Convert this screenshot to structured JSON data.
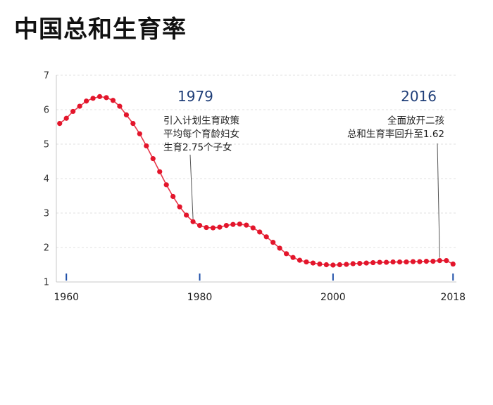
{
  "page": {
    "title": "中国总和生育率"
  },
  "chart_data": {
    "type": "line",
    "title": "中国总和生育率",
    "xlabel": "",
    "ylabel": "",
    "xlim": [
      1958.5,
      2018.5
    ],
    "ylim": [
      1,
      7
    ],
    "yticks": [
      1,
      2,
      3,
      4,
      5,
      6,
      7
    ],
    "xticks": [
      1960,
      1980,
      2000,
      2018
    ],
    "grid": true,
    "series": [
      {
        "color": "#e3152b",
        "x": [
          1959,
          1960,
          1961,
          1962,
          1963,
          1964,
          1965,
          1966,
          1967,
          1968,
          1969,
          1970,
          1971,
          1972,
          1973,
          1974,
          1975,
          1976,
          1977,
          1978,
          1979,
          1980,
          1981,
          1982,
          1983,
          1984,
          1985,
          1986,
          1987,
          1988,
          1989,
          1990,
          1991,
          1992,
          1993,
          1994,
          1995,
          1996,
          1997,
          1998,
          1999,
          2000,
          2001,
          2002,
          2003,
          2004,
          2005,
          2006,
          2007,
          2008,
          2009,
          2010,
          2011,
          2012,
          2013,
          2014,
          2015,
          2016,
          2017,
          2018
        ],
        "y": [
          5.6,
          5.75,
          5.95,
          6.1,
          6.25,
          6.33,
          6.38,
          6.35,
          6.27,
          6.1,
          5.85,
          5.6,
          5.3,
          4.95,
          4.58,
          4.2,
          3.82,
          3.48,
          3.18,
          2.94,
          2.75,
          2.64,
          2.58,
          2.57,
          2.59,
          2.64,
          2.67,
          2.68,
          2.65,
          2.57,
          2.45,
          2.31,
          2.15,
          1.98,
          1.82,
          1.71,
          1.63,
          1.58,
          1.55,
          1.52,
          1.5,
          1.49,
          1.5,
          1.51,
          1.53,
          1.54,
          1.55,
          1.56,
          1.57,
          1.57,
          1.58,
          1.58,
          1.58,
          1.59,
          1.59,
          1.6,
          1.6,
          1.62,
          1.62,
          1.52
        ]
      }
    ],
    "annotations": [
      {
        "year_label": "1979",
        "lines": [
          "引入计划生育政策",
          "平均每个育龄妇女",
          "生育2.75个子女"
        ],
        "x": 1979,
        "y": 2.75
      },
      {
        "year_label": "2016",
        "lines": [
          "全面放开二孩",
          "总和生育率回升至1.62"
        ],
        "x": 2016,
        "y": 1.62
      }
    ]
  }
}
